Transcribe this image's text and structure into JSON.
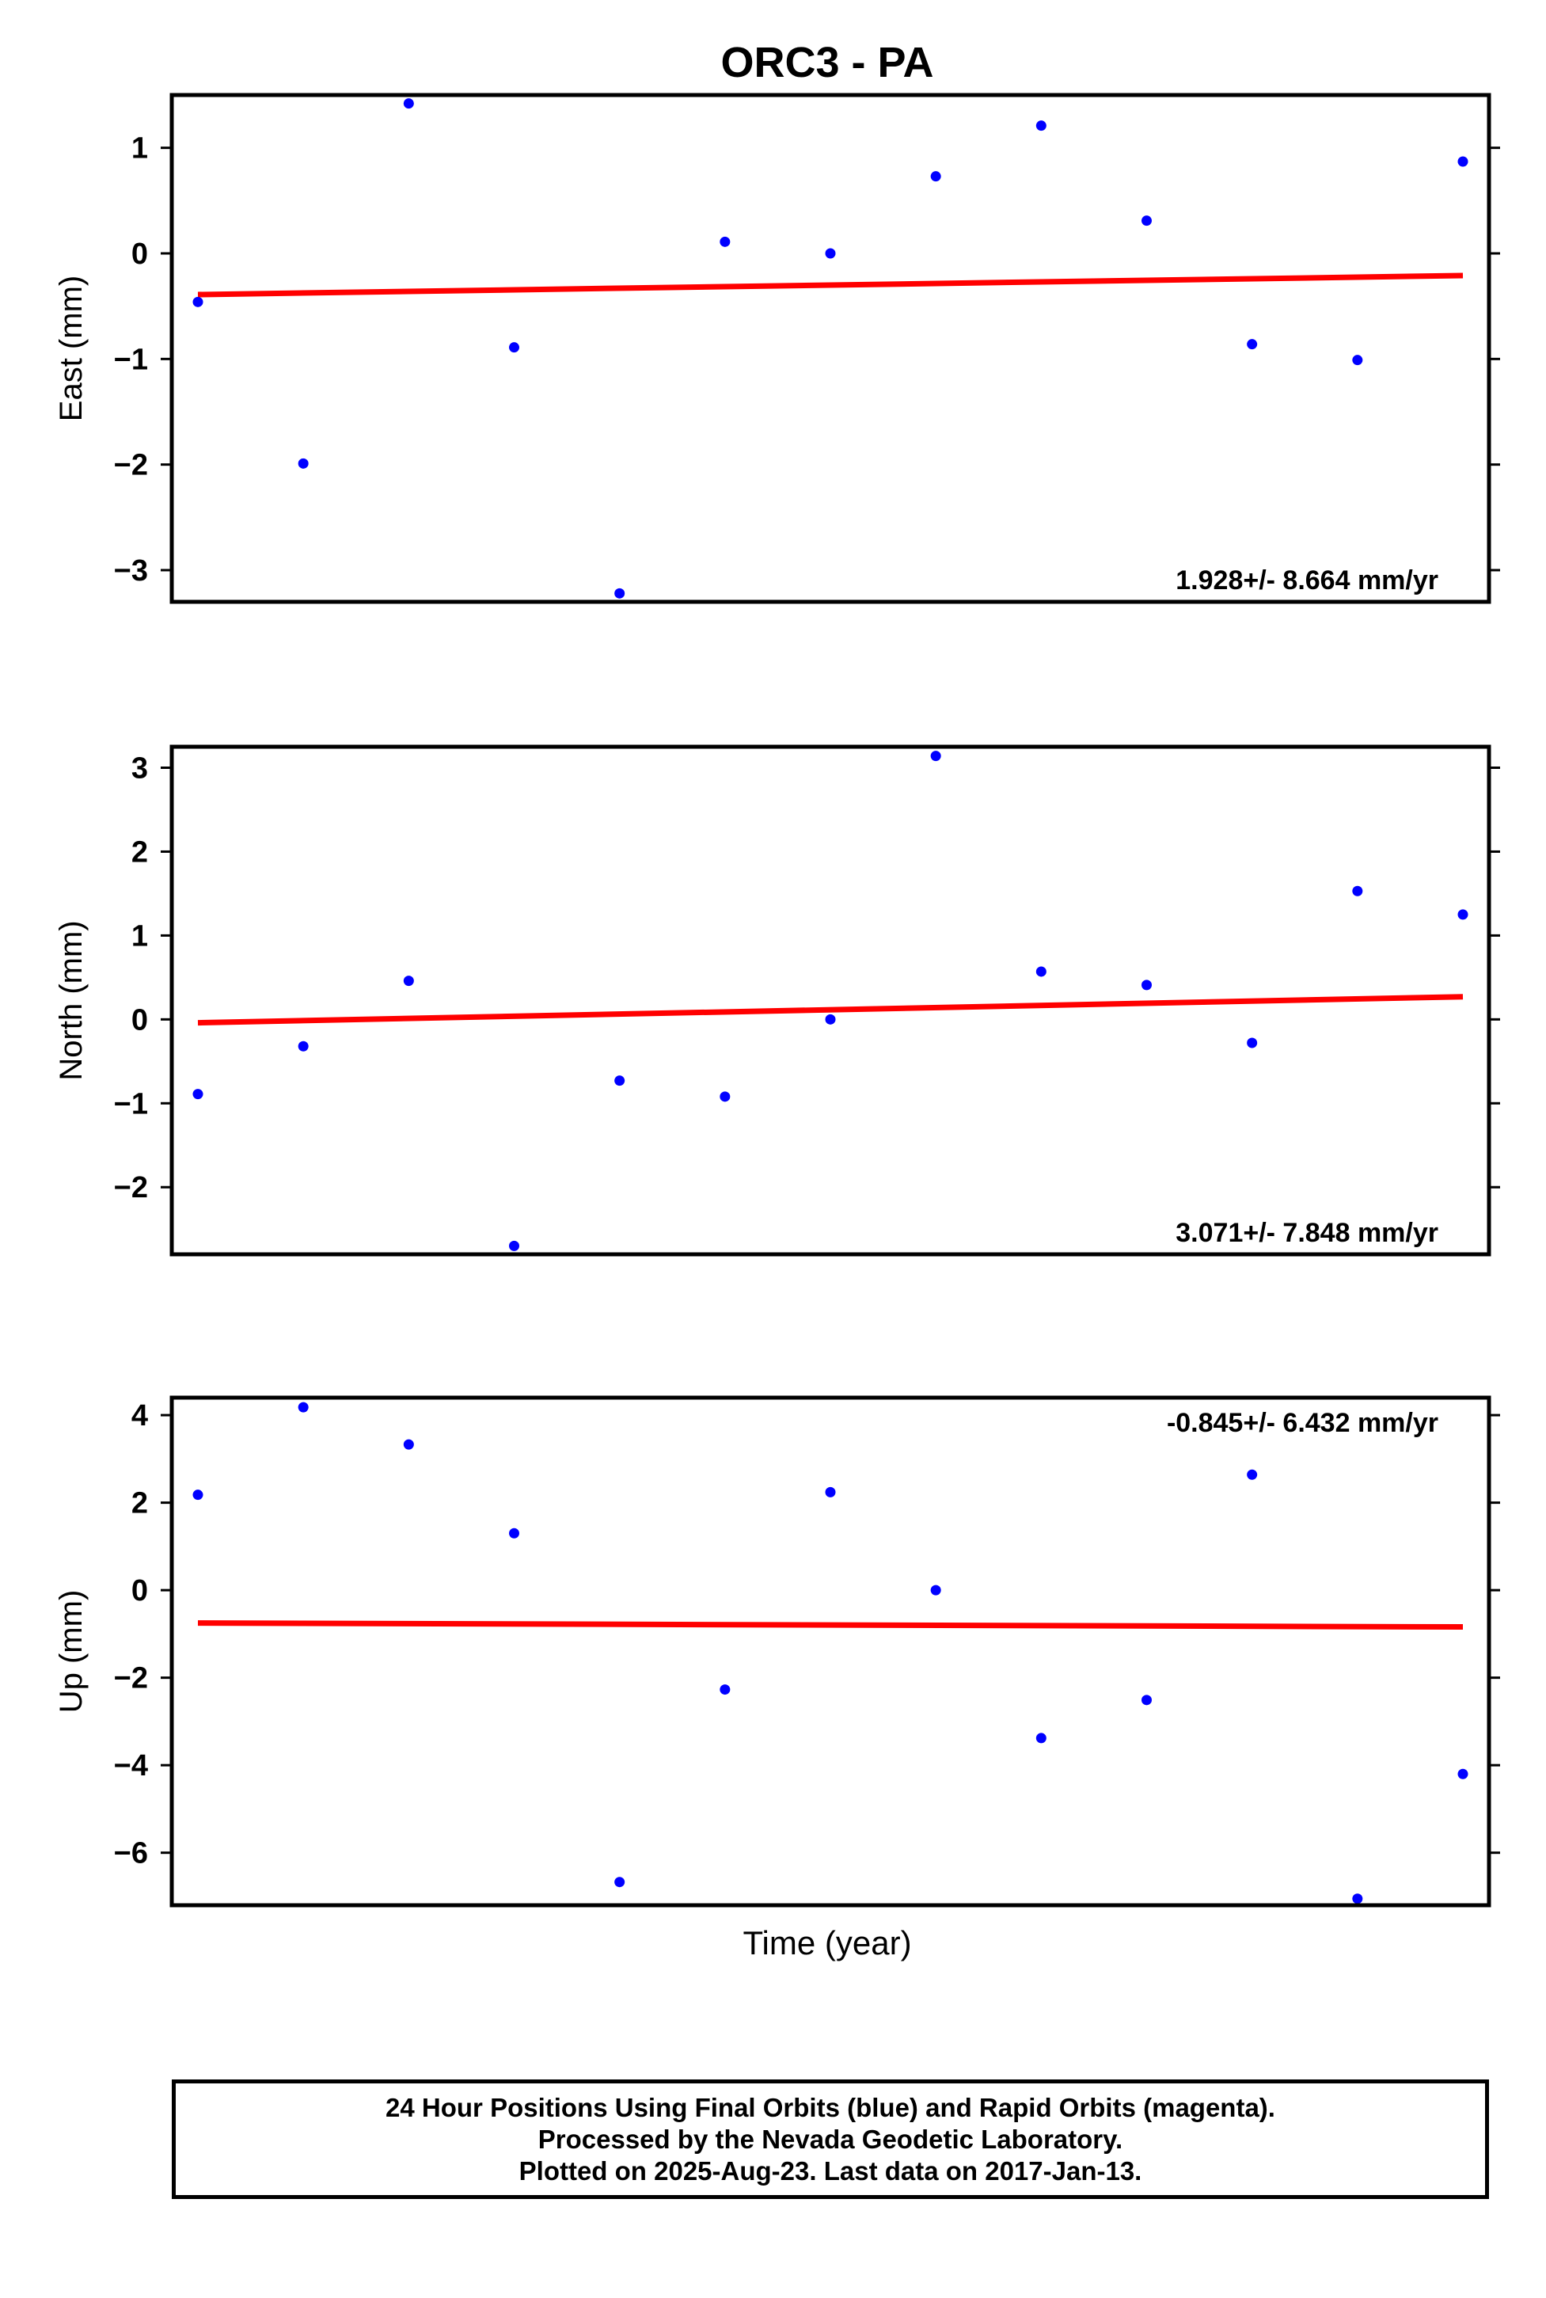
{
  "title": "ORC3 - PA",
  "xlabel": "Time (year)",
  "colors": {
    "points": "#0000ff",
    "trend": "#ff0000",
    "frame": "#000000"
  },
  "chart_data": [
    {
      "type": "scatter",
      "ylabel": "East (mm)",
      "ylim": [
        -3.3,
        1.5
      ],
      "yticks": [
        1,
        0,
        -1,
        -2,
        -3
      ],
      "rate_text": "1.928+/- 8.664 mm/yr",
      "rate_position": "bottom-right",
      "x_index": [
        0,
        1,
        2,
        3,
        4,
        5,
        6,
        7,
        8,
        9,
        10,
        11,
        12
      ],
      "values": [
        -0.46,
        -1.99,
        1.42,
        -0.89,
        -3.22,
        0.11,
        0.0,
        0.73,
        1.21,
        0.31,
        -0.86,
        -1.01,
        0.87
      ],
      "trend": [
        -0.39,
        -0.21
      ]
    },
    {
      "type": "scatter",
      "ylabel": "North (mm)",
      "ylim": [
        -2.8,
        3.25
      ],
      "yticks": [
        3,
        2,
        1,
        0,
        -1,
        -2
      ],
      "rate_text": "3.071+/- 7.848 mm/yr",
      "rate_position": "bottom-right",
      "x_index": [
        0,
        1,
        2,
        3,
        4,
        5,
        6,
        7,
        8,
        9,
        10,
        11,
        12
      ],
      "values": [
        -0.89,
        -0.32,
        0.46,
        -2.7,
        -0.73,
        -0.92,
        0.0,
        3.14,
        0.57,
        0.41,
        -0.28,
        1.53,
        1.25
      ],
      "trend": [
        -0.04,
        0.27
      ]
    },
    {
      "type": "scatter",
      "ylabel": "Up (mm)",
      "ylim": [
        -7.2,
        4.4
      ],
      "yticks": [
        4,
        2,
        0,
        -2,
        -4,
        -6
      ],
      "rate_text": "-0.845+/- 6.432 mm/yr",
      "rate_position": "top-right",
      "x_index": [
        0,
        1,
        2,
        3,
        4,
        5,
        6,
        7,
        8,
        9,
        10,
        11,
        12
      ],
      "values": [
        2.18,
        4.18,
        3.33,
        1.3,
        -6.67,
        -2.27,
        2.24,
        0.0,
        -3.38,
        -2.51,
        2.64,
        -7.05,
        -4.2
      ],
      "trend": [
        -0.75,
        -0.84
      ]
    }
  ],
  "footer": {
    "line1": "24 Hour Positions Using Final Orbits (blue) and Rapid Orbits (magenta).",
    "line2": "Processed by the Nevada Geodetic Laboratory.",
    "line3": "Plotted on 2025-Aug-23. Last data on 2017-Jan-13."
  }
}
